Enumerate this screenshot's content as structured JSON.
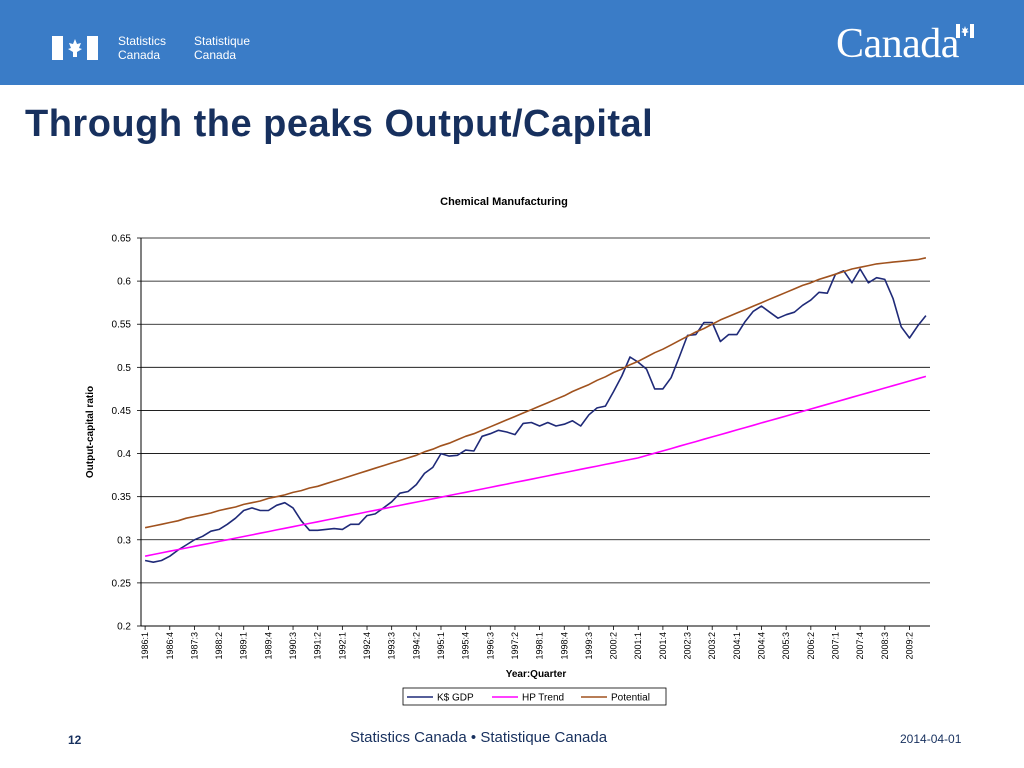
{
  "header": {
    "org_en_line1": "Statistics",
    "org_en_line2": "Canada",
    "org_fr_line1": "Statistique",
    "org_fr_line2": "Canada",
    "wordmark": "Canada",
    "bar_color": "#3a7cc7"
  },
  "slide": {
    "title": "Through the peaks Output/Capital"
  },
  "footer": {
    "page_number": "12",
    "center_text": "Statistics Canada • Statistique Canada",
    "date": "2014-04-01"
  },
  "chart_data": {
    "type": "line",
    "title": "Chemical Manufacturing",
    "xlabel": "Year:Quarter",
    "ylabel": "Output-capital ratio",
    "ylim": [
      0.2,
      0.65
    ],
    "yticks": [
      0.2,
      0.25,
      0.3,
      0.35,
      0.4,
      0.45,
      0.5,
      0.55,
      0.6,
      0.65
    ],
    "grid": true,
    "legend_position": "bottom",
    "x_tick_labels": [
      "1986:1",
      "1986:4",
      "1987:3",
      "1988:2",
      "1989:1",
      "1989:4",
      "1990:3",
      "1991:2",
      "1992:1",
      "1992:4",
      "1993:3",
      "1994:2",
      "1995:1",
      "1995:4",
      "1996:3",
      "1997:2",
      "1998:1",
      "1998:4",
      "1999:3",
      "2000:2",
      "2001:1",
      "2001:4",
      "2002:3",
      "2003:2",
      "2004:1",
      "2004:4",
      "2005:3",
      "2006:2",
      "2007:1",
      "2007:4",
      "2008:3",
      "2009:2"
    ],
    "x_start": "1986:1",
    "x_end": "2009:4",
    "series": [
      {
        "name": "K$ GDP",
        "color": "#1f2a78",
        "values": [
          0.276,
          0.274,
          0.276,
          0.281,
          0.288,
          0.294,
          0.3,
          0.304,
          0.31,
          0.312,
          0.318,
          0.325,
          0.334,
          0.337,
          0.334,
          0.334,
          0.34,
          0.343,
          0.337,
          0.322,
          0.311,
          0.311,
          0.312,
          0.313,
          0.312,
          0.318,
          0.318,
          0.328,
          0.33,
          0.337,
          0.344,
          0.354,
          0.356,
          0.364,
          0.377,
          0.384,
          0.4,
          0.397,
          0.398,
          0.404,
          0.403,
          0.42,
          0.423,
          0.427,
          0.425,
          0.422,
          0.435,
          0.436,
          0.432,
          0.436,
          0.432,
          0.434,
          0.438,
          0.432,
          0.445,
          0.453,
          0.455,
          0.472,
          0.49,
          0.512,
          0.506,
          0.498,
          0.475,
          0.475,
          0.488,
          0.512,
          0.537,
          0.538,
          0.552,
          0.552,
          0.53,
          0.538,
          0.538,
          0.553,
          0.565,
          0.571,
          0.564,
          0.557,
          0.561,
          0.564,
          0.572,
          0.578,
          0.587,
          0.586,
          0.608,
          0.612,
          0.598,
          0.614,
          0.598,
          0.604,
          0.602,
          0.58,
          0.547,
          0.534,
          0.548,
          0.56
        ]
      },
      {
        "name": "HP Trend",
        "color": "#ff00ff",
        "values": [
          0.281,
          0.2829,
          0.2848,
          0.2867,
          0.2886,
          0.2905,
          0.2924,
          0.2943,
          0.2962,
          0.2981,
          0.3,
          0.3019,
          0.3038,
          0.3057,
          0.3076,
          0.3095,
          0.3114,
          0.3133,
          0.3152,
          0.3171,
          0.319,
          0.3209,
          0.3228,
          0.3247,
          0.3266,
          0.3285,
          0.3304,
          0.3323,
          0.3342,
          0.3361,
          0.338,
          0.3399,
          0.3418,
          0.3437,
          0.3456,
          0.3475,
          0.3494,
          0.3513,
          0.3532,
          0.3551,
          0.357,
          0.3589,
          0.3608,
          0.3627,
          0.3646,
          0.3665,
          0.3684,
          0.3703,
          0.3722,
          0.3741,
          0.376,
          0.3779,
          0.3798,
          0.3817,
          0.3836,
          0.3855,
          0.3874,
          0.3893,
          0.3912,
          0.3931,
          0.395,
          0.3977,
          0.4004,
          0.4031,
          0.4058,
          0.4085,
          0.4112,
          0.4139,
          0.4166,
          0.4193,
          0.422,
          0.4247,
          0.4274,
          0.4301,
          0.4328,
          0.4355,
          0.4382,
          0.4409,
          0.4436,
          0.4463,
          0.449,
          0.4517,
          0.4544,
          0.4571,
          0.4598,
          0.4625,
          0.4652,
          0.4679,
          0.4706,
          0.4733,
          0.476,
          0.4787,
          0.4814,
          0.4841,
          0.4868,
          0.4895
        ]
      },
      {
        "name": "Potential",
        "color": "#a0521e",
        "values": [
          0.314,
          0.316,
          0.318,
          0.32,
          0.322,
          0.325,
          0.327,
          0.329,
          0.331,
          0.334,
          0.336,
          0.338,
          0.341,
          0.343,
          0.345,
          0.348,
          0.35,
          0.352,
          0.355,
          0.357,
          0.36,
          0.362,
          0.365,
          0.368,
          0.371,
          0.374,
          0.377,
          0.38,
          0.383,
          0.386,
          0.389,
          0.392,
          0.395,
          0.398,
          0.402,
          0.405,
          0.409,
          0.412,
          0.416,
          0.42,
          0.423,
          0.427,
          0.431,
          0.435,
          0.439,
          0.443,
          0.447,
          0.451,
          0.455,
          0.459,
          0.463,
          0.467,
          0.472,
          0.476,
          0.48,
          0.485,
          0.489,
          0.494,
          0.498,
          0.503,
          0.507,
          0.512,
          0.517,
          0.521,
          0.526,
          0.531,
          0.536,
          0.541,
          0.545,
          0.55,
          0.555,
          0.559,
          0.563,
          0.567,
          0.571,
          0.575,
          0.579,
          0.583,
          0.587,
          0.591,
          0.595,
          0.598,
          0.602,
          0.605,
          0.608,
          0.611,
          0.614,
          0.616,
          0.618,
          0.62,
          0.621,
          0.622,
          0.623,
          0.624,
          0.625,
          0.627
        ]
      }
    ]
  }
}
